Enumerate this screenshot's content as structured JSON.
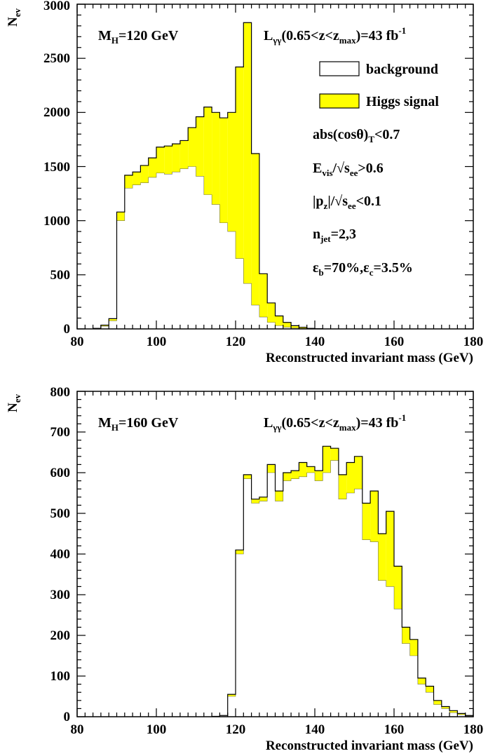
{
  "colors": {
    "signal": "#ffff00",
    "background_fill": "#ffffff",
    "line": "#000000"
  },
  "chart_data": [
    {
      "type": "histogram",
      "stacked": true,
      "xlim": [
        80,
        180
      ],
      "ylim": [
        0,
        3000
      ],
      "xticks": [
        80,
        100,
        120,
        140,
        160,
        180
      ],
      "yticks": [
        0,
        500,
        1000,
        1500,
        2000,
        2500,
        3000
      ],
      "xlabel": "Reconstructed invariant mass (GeV)",
      "ylabel": {
        "main": "N",
        "sub": "ev"
      },
      "grid": false,
      "legend": {
        "position": "top-right",
        "background": "background",
        "signal": "Higgs signal"
      },
      "bin_edges": [
        84,
        86,
        88,
        90,
        92,
        94,
        96,
        98,
        100,
        102,
        104,
        106,
        108,
        110,
        112,
        114,
        116,
        118,
        120,
        122,
        124,
        126,
        128,
        130,
        132,
        134,
        136,
        138,
        140,
        142
      ],
      "series": [
        {
          "name": "background",
          "values": [
            5,
            25,
            75,
            1000,
            1300,
            1330,
            1350,
            1400,
            1440,
            1430,
            1450,
            1480,
            1500,
            1410,
            1240,
            1150,
            980,
            900,
            650,
            420,
            220,
            110,
            60,
            30,
            15,
            8,
            5,
            3,
            2
          ]
        },
        {
          "name": "Higgs signal",
          "total": [
            5,
            35,
            95,
            1080,
            1420,
            1450,
            1510,
            1580,
            1680,
            1690,
            1710,
            1740,
            1860,
            1960,
            2050,
            2000,
            1950,
            2000,
            2420,
            2830,
            1620,
            510,
            240,
            120,
            60,
            30,
            15,
            5,
            2
          ]
        }
      ],
      "annotations": {
        "mass": {
          "main": "M",
          "sub": "H",
          "rest": "=120 GeV"
        },
        "lumi": {
          "main": "L",
          "sub": "γγ",
          "rest": "(0.65<z<z",
          "sub2": "max",
          "rest2": ")=43 fb",
          "sup": "-1"
        },
        "cut_costheta": {
          "main": "abs(cosθ)",
          "sub": "T",
          "rest": "<0.7"
        },
        "cut_evis": {
          "main": "E",
          "sub": "vis",
          "rest": "/√s",
          "sub2": "ee",
          "rest2": ">0.6"
        },
        "cut_pz": {
          "main": "|p",
          "sub": "z",
          "rest": "|/√s",
          "sub2": "ee",
          "rest2": "<0.1"
        },
        "cut_njet": {
          "main": "n",
          "sub": "jet",
          "rest": "=2,3"
        },
        "cut_eff": {
          "main": "ε",
          "sub": "b",
          "rest": "=70%,ε",
          "sub2": "c",
          "rest2": "=3.5%"
        }
      }
    },
    {
      "type": "histogram",
      "stacked": true,
      "xlim": [
        80,
        180
      ],
      "ylim": [
        0,
        800
      ],
      "xticks": [
        80,
        100,
        120,
        140,
        160,
        180
      ],
      "yticks": [
        0,
        100,
        200,
        300,
        400,
        500,
        600,
        700,
        800
      ],
      "xlabel": "Reconstructed invariant mass (GeV)",
      "ylabel": {
        "main": "N",
        "sub": "ev"
      },
      "grid": false,
      "bin_edges": [
        114,
        116,
        118,
        120,
        122,
        124,
        126,
        128,
        130,
        132,
        134,
        136,
        138,
        140,
        142,
        144,
        146,
        148,
        150,
        152,
        154,
        156,
        158,
        160,
        162,
        164,
        166,
        168,
        170,
        172,
        174,
        176,
        178,
        180
      ],
      "series": [
        {
          "name": "background",
          "values": [
            1,
            3,
            50,
            400,
            585,
            525,
            530,
            600,
            530,
            580,
            585,
            590,
            600,
            580,
            600,
            630,
            535,
            550,
            560,
            435,
            430,
            335,
            320,
            265,
            180,
            150,
            80,
            60,
            30,
            20,
            10,
            5,
            2
          ]
        },
        {
          "name": "Higgs signal",
          "total": [
            1,
            3,
            55,
            410,
            595,
            535,
            540,
            620,
            555,
            600,
            605,
            625,
            615,
            605,
            665,
            660,
            595,
            625,
            640,
            525,
            555,
            450,
            505,
            370,
            220,
            190,
            95,
            75,
            40,
            25,
            15,
            8,
            3
          ]
        }
      ],
      "annotations": {
        "mass": {
          "main": "M",
          "sub": "H",
          "rest": "=160 GeV"
        },
        "lumi": {
          "main": "L",
          "sub": "γγ",
          "rest": "(0.65<z<z",
          "sub2": "max",
          "rest2": ")=43 fb",
          "sup": "-1"
        }
      }
    }
  ]
}
